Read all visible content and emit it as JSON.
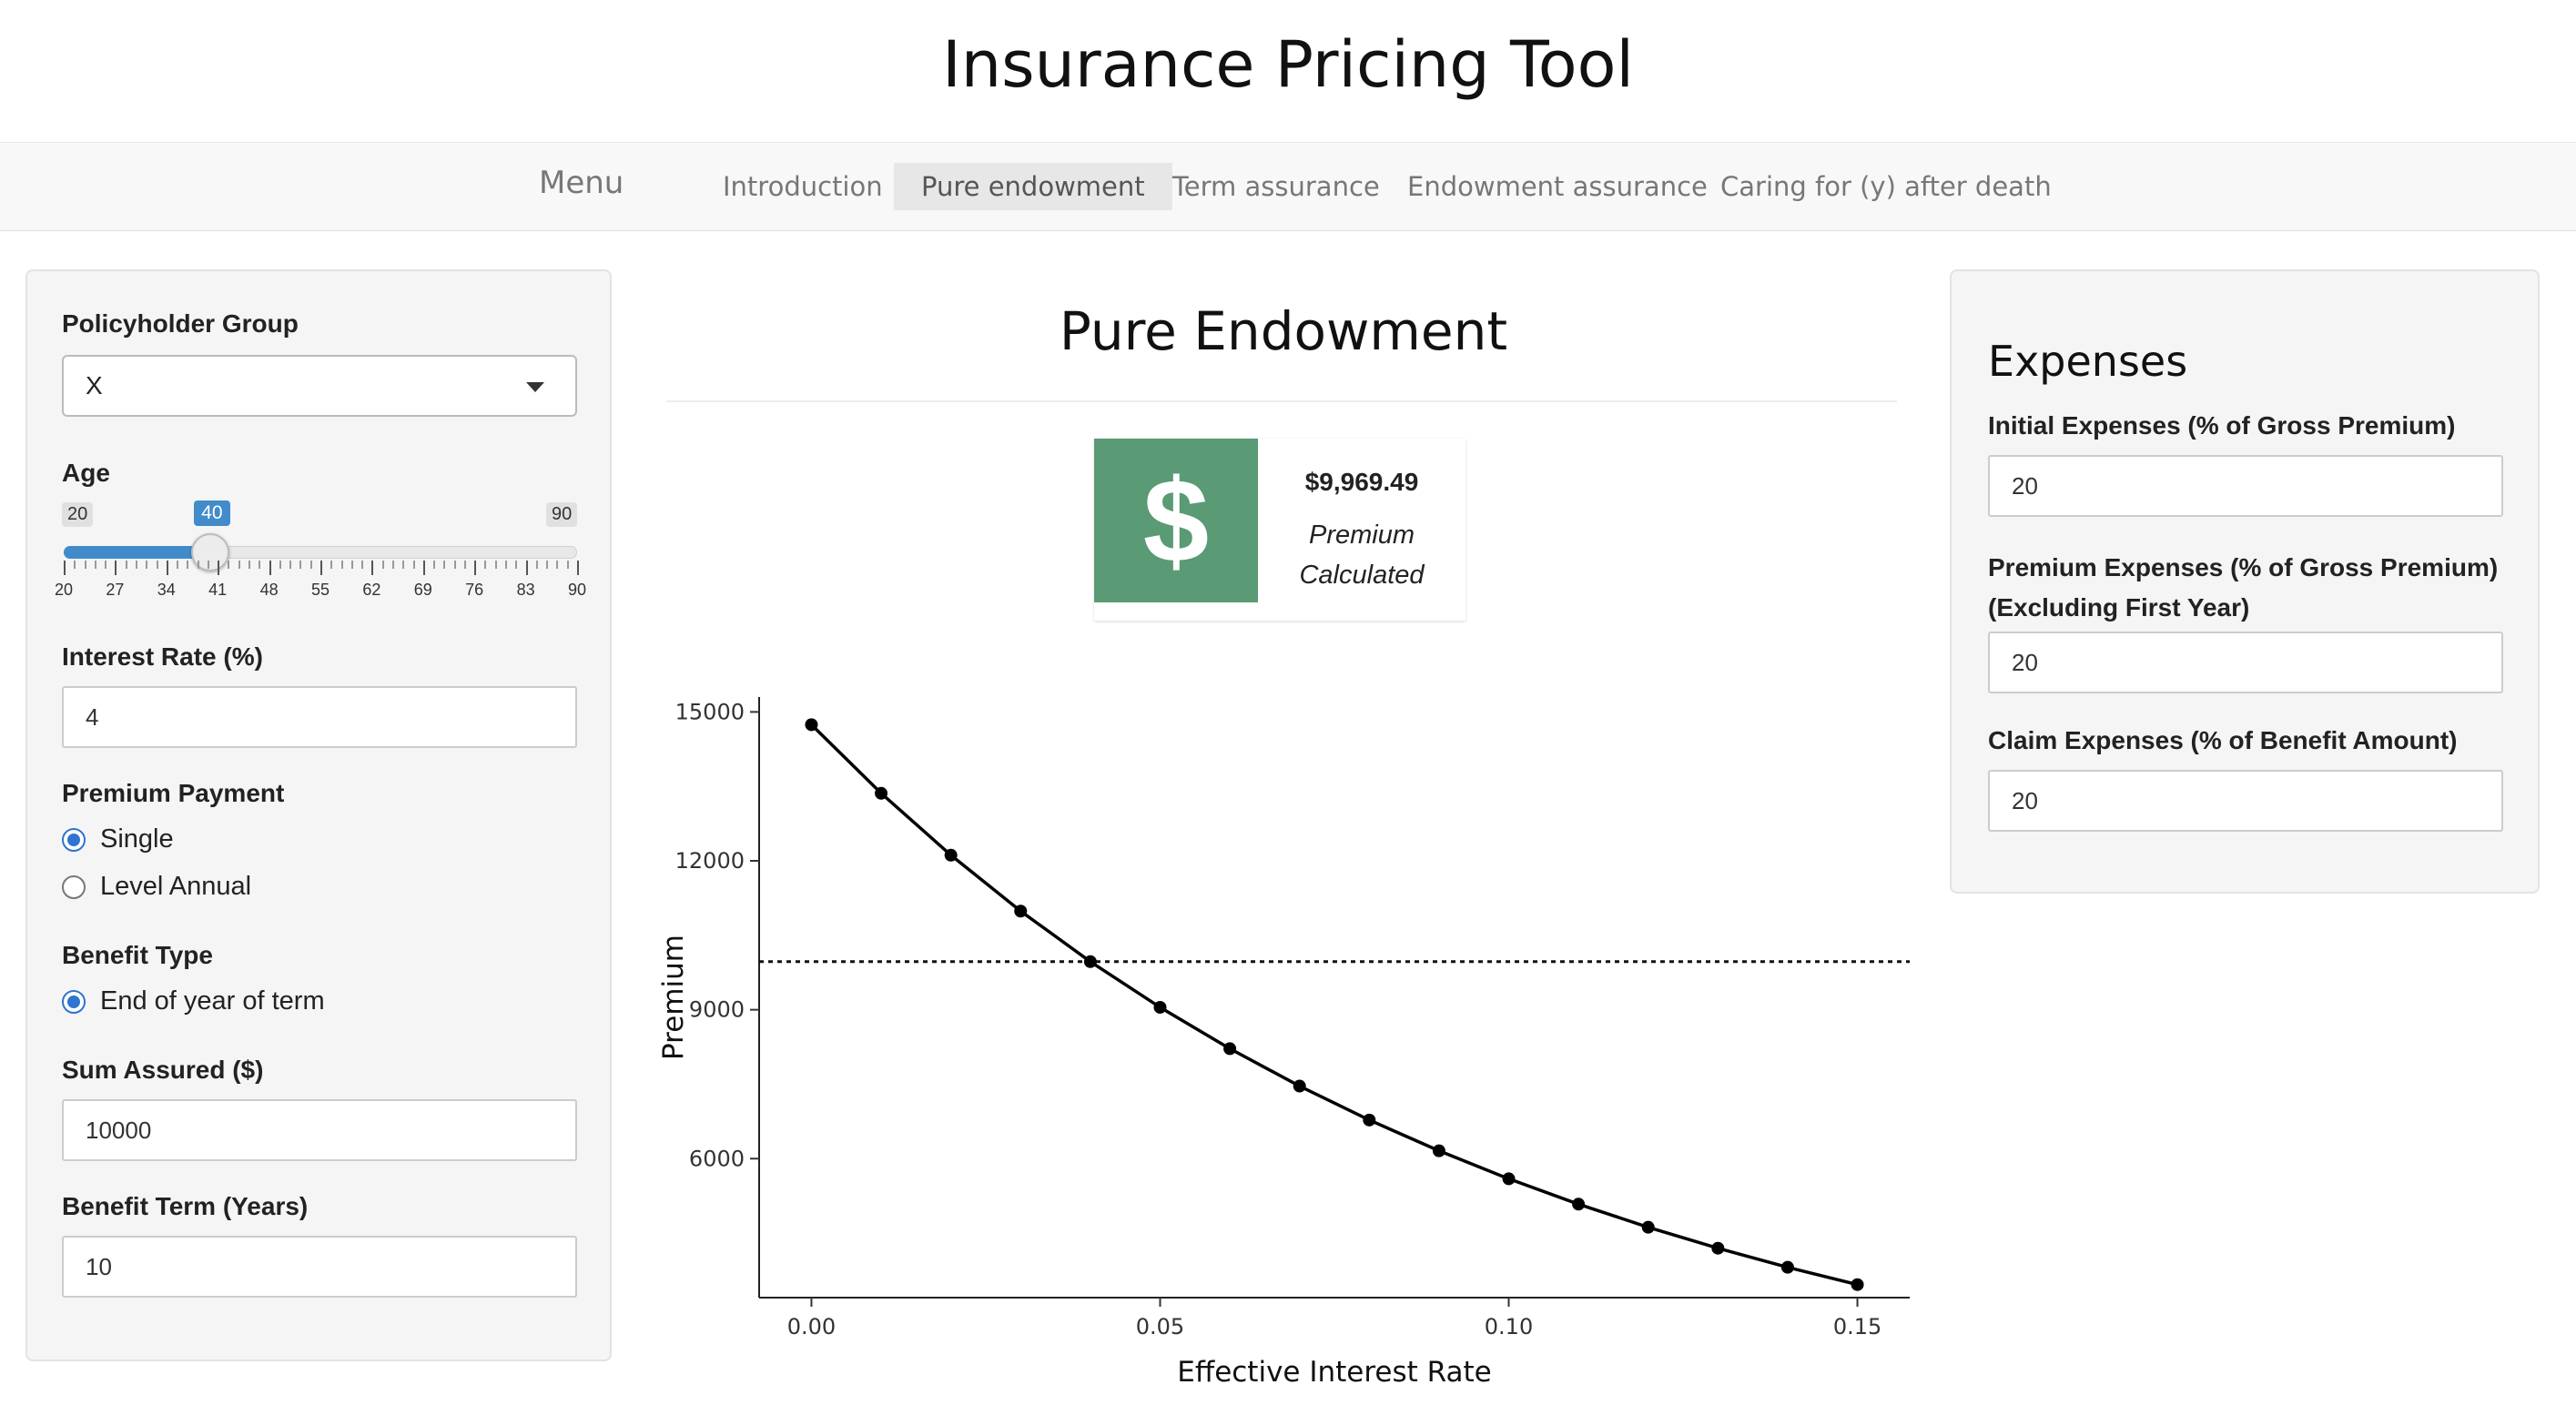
{
  "app": {
    "title": "Insurance Pricing Tool"
  },
  "nav": {
    "brand": "Menu",
    "tabs": [
      {
        "label": "Introduction",
        "active": false
      },
      {
        "label": "Pure endowment",
        "active": true
      },
      {
        "label": "Term assurance",
        "active": false
      },
      {
        "label": "Endowment assurance",
        "active": false
      },
      {
        "label": "Caring for (y) after death",
        "active": false
      }
    ]
  },
  "sidebar": {
    "policyholder_group": {
      "label": "Policyholder Group",
      "value": "X"
    },
    "age": {
      "label": "Age",
      "min": 20,
      "max": 90,
      "value": 40,
      "min_label": "20",
      "max_label": "90",
      "value_label": "40",
      "ticks": [
        "20",
        "27",
        "34",
        "41",
        "48",
        "55",
        "62",
        "69",
        "76",
        "83",
        "90"
      ]
    },
    "interest_rate": {
      "label": "Interest Rate (%)",
      "value": "4"
    },
    "premium_payment": {
      "label": "Premium Payment",
      "options": [
        {
          "label": "Single",
          "checked": true
        },
        {
          "label": "Level Annual",
          "checked": false
        }
      ]
    },
    "benefit_type": {
      "label": "Benefit Type",
      "options": [
        {
          "label": "End of year of term",
          "checked": true
        }
      ]
    },
    "sum_assured": {
      "label": "Sum Assured ($)",
      "value": "10000"
    },
    "benefit_term": {
      "label": "Benefit Term (Years)",
      "value": "10"
    }
  },
  "main": {
    "title": "Pure Endowment",
    "value_box": {
      "amount": "$9,969.49",
      "label": "Premium Calculated",
      "icon": "dollar-icon",
      "color": "#5a9a74"
    }
  },
  "expenses": {
    "title": "Expenses",
    "initial": {
      "label": "Initial Expenses (% of Gross Premium)",
      "value": "20"
    },
    "premium": {
      "label": "Premium Expenses (% of Gross Premium) (Excluding First Year)",
      "value": "20"
    },
    "claim": {
      "label": "Claim Expenses (% of Benefit Amount)",
      "value": "20"
    }
  },
  "chart_data": {
    "type": "line",
    "xlabel": "Effective Interest Rate",
    "ylabel": "Premium",
    "x": [
      0.0,
      0.01,
      0.02,
      0.03,
      0.04,
      0.05,
      0.06,
      0.07,
      0.08,
      0.09,
      0.1,
      0.11,
      0.12,
      0.13,
      0.14,
      0.15
    ],
    "series": [
      {
        "values": [
          14743,
          13361,
          12114,
          10987,
          9969,
          9049,
          8216,
          7462,
          6778,
          6158,
          5594,
          5083,
          4618,
          4195,
          3811,
          3462
        ]
      }
    ],
    "reference_line": {
      "y": 9969.49,
      "style": "dotted"
    },
    "xticks": [
      "0.00",
      "0.05",
      "0.10",
      "0.15"
    ],
    "xtick_values": [
      0,
      0.05,
      0.1,
      0.15
    ],
    "yticks": [
      "6000",
      "9000",
      "12000",
      "15000"
    ],
    "ytick_values": [
      6000,
      9000,
      12000,
      15000
    ],
    "xlim": [
      -0.0075,
      0.1575
    ],
    "ylim": [
      3200,
      15300
    ],
    "grid": false
  }
}
